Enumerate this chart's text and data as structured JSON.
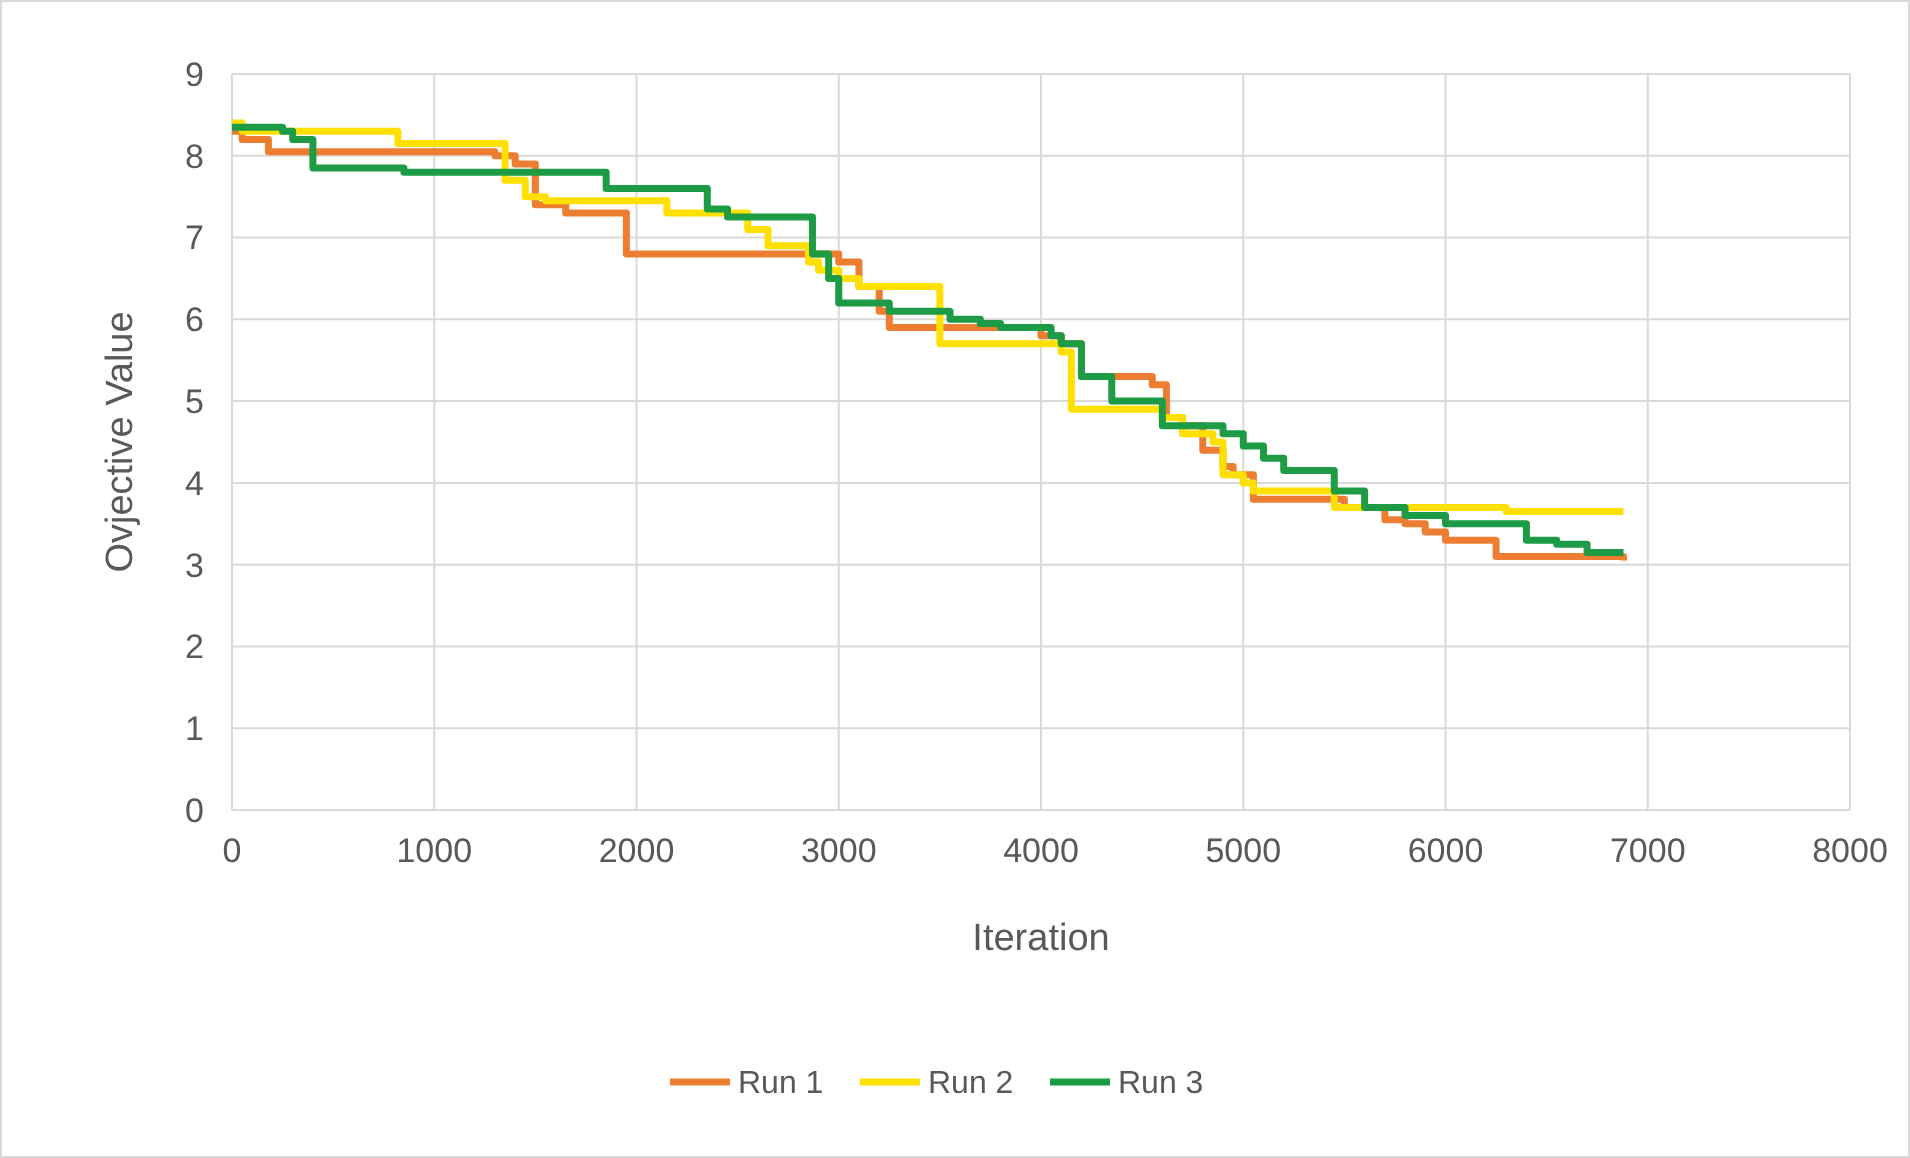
{
  "chart_data": {
    "type": "step",
    "xlabel": "Iteration",
    "ylabel": "Ovjective Value",
    "xlim": [
      0,
      8000
    ],
    "xticks": [
      0,
      1000,
      2000,
      3000,
      4000,
      5000,
      6000,
      7000,
      8000
    ],
    "ylim": [
      0,
      9
    ],
    "yticks": [
      0,
      1,
      2,
      3,
      4,
      5,
      6,
      7,
      8,
      9
    ],
    "grid": true,
    "legend": "bottom",
    "marker": "none",
    "line_style": "solid",
    "series": [
      {
        "name": "Run 1",
        "color": "#ed7d31",
        "x": [
          0,
          50,
          180,
          1300,
          1400,
          1500,
          1530,
          1650,
          1950,
          3000,
          3100,
          3200,
          3250,
          4000,
          4100,
          4200,
          4550,
          4620,
          4700,
          4800,
          4900,
          4950,
          5050,
          5500,
          5700,
          5800,
          5900,
          6000,
          6250,
          6880
        ],
        "values": [
          8.3,
          8.2,
          8.05,
          8.0,
          7.9,
          7.4,
          7.4,
          7.3,
          6.8,
          6.7,
          6.4,
          6.1,
          5.9,
          5.8,
          5.7,
          5.3,
          5.2,
          4.8,
          4.7,
          4.4,
          4.2,
          4.1,
          3.8,
          3.7,
          3.55,
          3.5,
          3.4,
          3.3,
          3.1,
          3.05
        ]
      },
      {
        "name": "Run 2",
        "color": "#ffe000",
        "x": [
          0,
          50,
          820,
          1350,
          1450,
          1550,
          2150,
          2550,
          2650,
          2850,
          2900,
          3000,
          3100,
          3500,
          4100,
          4150,
          4600,
          4700,
          4850,
          4900,
          5000,
          5050,
          5450,
          6300,
          6880
        ],
        "values": [
          8.4,
          8.3,
          8.15,
          7.7,
          7.5,
          7.45,
          7.3,
          7.1,
          6.9,
          6.7,
          6.6,
          6.5,
          6.4,
          5.7,
          5.6,
          4.9,
          4.8,
          4.6,
          4.5,
          4.1,
          4.0,
          3.9,
          3.7,
          3.65,
          3.65
        ]
      },
      {
        "name": "Run 3",
        "color": "#1e9c45",
        "x": [
          0,
          250,
          300,
          400,
          850,
          1850,
          2350,
          2450,
          2870,
          2950,
          3000,
          3250,
          3550,
          3700,
          3800,
          4050,
          4100,
          4200,
          4350,
          4600,
          4900,
          5000,
          5100,
          5200,
          5450,
          5600,
          5800,
          6000,
          6400,
          6550,
          6700,
          6880
        ],
        "values": [
          8.35,
          8.3,
          8.2,
          7.85,
          7.8,
          7.6,
          7.35,
          7.25,
          6.8,
          6.5,
          6.2,
          6.1,
          6.0,
          5.95,
          5.9,
          5.8,
          5.7,
          5.3,
          5.0,
          4.7,
          4.6,
          4.45,
          4.3,
          4.15,
          3.9,
          3.7,
          3.6,
          3.5,
          3.3,
          3.25,
          3.15,
          3.15
        ]
      }
    ]
  }
}
